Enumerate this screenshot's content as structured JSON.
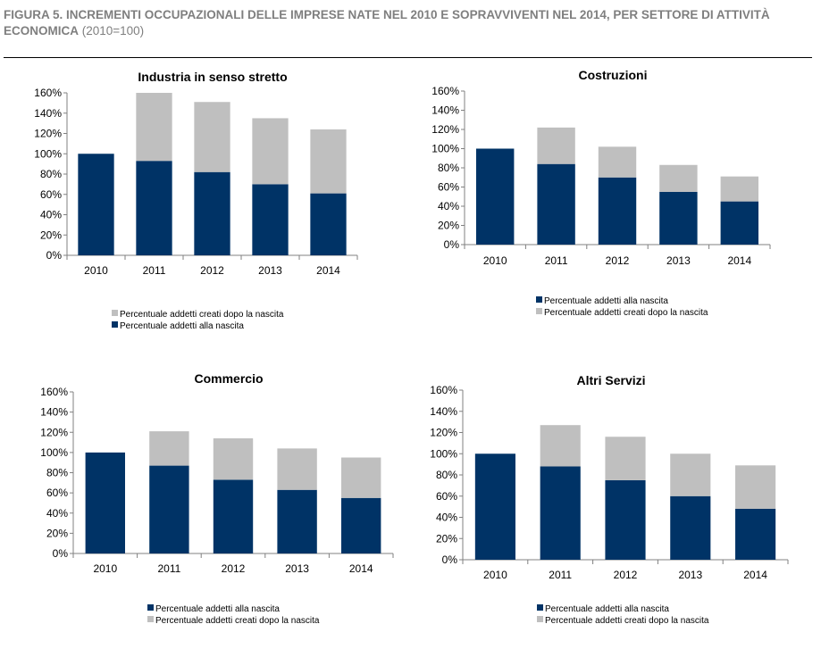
{
  "figure": {
    "title_bold": "FIGURA 5. INCREMENTI OCCUPAZIONALI DELLE IMPRESE NATE NEL 2010 E SOPRAVVIVENTI NEL 2014, PER SETTORE DI ATTIVITÀ ECONOMICA",
    "title_normal": " (2010=100)"
  },
  "colors": {
    "birth": "#003366",
    "created": "#bfbfbf",
    "axis": "#808080"
  },
  "chart_data": [
    {
      "id": "industria",
      "type": "bar",
      "stacked": true,
      "title": "Industria in senso stretto",
      "categories": [
        "2010",
        "2011",
        "2012",
        "2013",
        "2014"
      ],
      "series": [
        {
          "name": "Percentuale addetti alla nascita",
          "values": [
            100,
            93,
            82,
            70,
            61
          ]
        },
        {
          "name": "Percentuale addetti creati dopo la nascita",
          "values": [
            0,
            67,
            69,
            65,
            63
          ]
        }
      ],
      "ylim": [
        0,
        160
      ],
      "yticks": [
        "0%",
        "20%",
        "40%",
        "60%",
        "80%",
        "100%",
        "120%",
        "140%",
        "160%"
      ],
      "legend_order": [
        1,
        0
      ],
      "legend_position": "bottom"
    },
    {
      "id": "costruzioni",
      "type": "bar",
      "stacked": true,
      "title": "Costruzioni",
      "categories": [
        "2010",
        "2011",
        "2012",
        "2013",
        "2014"
      ],
      "series": [
        {
          "name": "Percentuale addetti alla nascita",
          "values": [
            100,
            84,
            70,
            55,
            45
          ]
        },
        {
          "name": "Percentuale addetti creati dopo la nascita",
          "values": [
            0,
            38,
            32,
            28,
            26
          ]
        }
      ],
      "ylim": [
        0,
        160
      ],
      "yticks": [
        "0%",
        "20%",
        "40%",
        "60%",
        "80%",
        "100%",
        "120%",
        "140%",
        "160%"
      ],
      "legend_order": [
        0,
        1
      ],
      "legend_position": "bottom"
    },
    {
      "id": "commercio",
      "type": "bar",
      "stacked": true,
      "title": "Commercio",
      "categories": [
        "2010",
        "2011",
        "2012",
        "2013",
        "2014"
      ],
      "series": [
        {
          "name": "Percentuale addetti alla nascita",
          "values": [
            100,
            87,
            73,
            63,
            55
          ]
        },
        {
          "name": "Percentuale addetti creati dopo la nascita",
          "values": [
            0,
            34,
            41,
            41,
            40
          ]
        }
      ],
      "ylim": [
        0,
        160
      ],
      "yticks": [
        "0%",
        "20%",
        "40%",
        "60%",
        "80%",
        "100%",
        "120%",
        "140%",
        "160%"
      ],
      "legend_order": [
        0,
        1
      ],
      "legend_position": "bottom"
    },
    {
      "id": "altri",
      "type": "bar",
      "stacked": true,
      "title": "Altri Servizi",
      "categories": [
        "2010",
        "2011",
        "2012",
        "2013",
        "2014"
      ],
      "series": [
        {
          "name": "Percentuale addetti alla nascita",
          "values": [
            100,
            88,
            75,
            60,
            48
          ]
        },
        {
          "name": "Percentuale addetti creati dopo la nascita",
          "values": [
            0,
            39,
            41,
            40,
            41
          ]
        }
      ],
      "ylim": [
        0,
        160
      ],
      "yticks": [
        "0%",
        "20%",
        "40%",
        "60%",
        "80%",
        "100%",
        "120%",
        "140%",
        "160%"
      ],
      "legend_order": [
        0,
        1
      ],
      "legend_position": "bottom"
    }
  ]
}
